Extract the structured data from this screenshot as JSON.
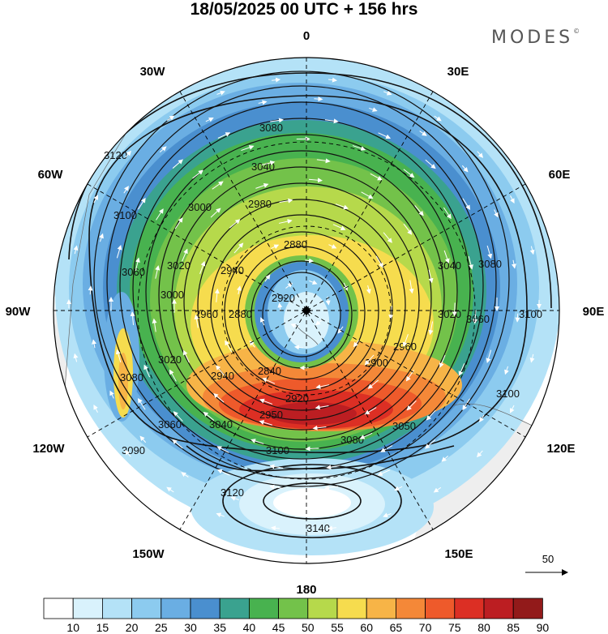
{
  "title": "18/05/2025  00 UTC  + 156 hrs",
  "brand": "MODES",
  "brand_mark": "©",
  "longitude_labels": {
    "deg0": "0",
    "deg30e": "30E",
    "deg60e": "60E",
    "deg90e": "90E",
    "deg120e": "120E",
    "deg150e": "150E",
    "deg180": "180",
    "deg150w": "150W",
    "deg120w": "120W",
    "deg90w": "90W",
    "deg60w": "60W",
    "deg30w": "30W"
  },
  "contour_labels": [
    "3120",
    "3100",
    "3080",
    "3040",
    "3000",
    "2980",
    "2940",
    "2880",
    "2920",
    "3060",
    "3020",
    "3000",
    "2960",
    "2880",
    "2940",
    "2840",
    "2900",
    "2960",
    "3020",
    "3060",
    "3080",
    "3040",
    "3020",
    "3100",
    "2920",
    "2950",
    "3040",
    "3050",
    "3080",
    "3060",
    "3100",
    "3100",
    "3120",
    "3140",
    "3090",
    "3080"
  ],
  "reference_vector": {
    "label": "50"
  },
  "colorbar": {
    "ticks": [
      "10",
      "15",
      "20",
      "25",
      "30",
      "35",
      "40",
      "45",
      "50",
      "55",
      "60",
      "65",
      "70",
      "75",
      "80",
      "85",
      "90"
    ],
    "colors": [
      "#ffffff",
      "#d9f2fc",
      "#b4e2f7",
      "#8ccbef",
      "#6aaee3",
      "#4a8fcf",
      "#3aa28f",
      "#48b24f",
      "#73c24a",
      "#b6d94b",
      "#f6dc4e",
      "#f7b447",
      "#f48838",
      "#ee5a2b",
      "#dc2f24",
      "#bc1e22",
      "#921a1a"
    ]
  },
  "colors": {
    "land": "#eeeeee",
    "contour": "#111111",
    "wind_arrows": "#ffffff"
  }
}
